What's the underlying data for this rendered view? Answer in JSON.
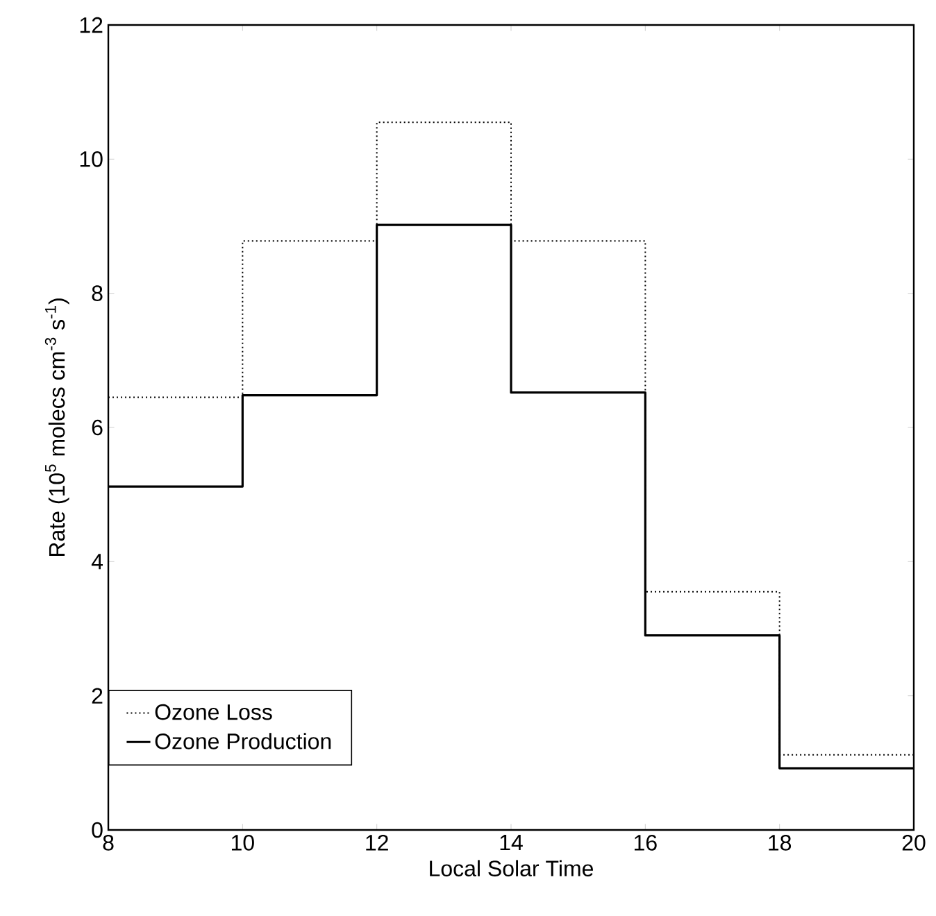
{
  "chart_data": {
    "type": "step",
    "xlabel": "Local Solar Time",
    "ylabel": "Rate (10$^{5}$ molecs cm$^{-3}$ s$^{-1}$)",
    "x": [
      8,
      10,
      12,
      14,
      16,
      18,
      20
    ],
    "series": [
      {
        "name": "Ozone Loss",
        "color": "#000000",
        "line_style": "dotted",
        "values": [
          6.45,
          8.78,
          10.55,
          8.78,
          3.55,
          1.12,
          1.12
        ]
      },
      {
        "name": "Ozone Production",
        "color": "#000000",
        "line_style": "solid",
        "values": [
          5.12,
          6.48,
          9.02,
          6.52,
          2.9,
          0.92,
          0.92
        ]
      }
    ],
    "xlim": [
      8,
      20
    ],
    "ylim": [
      0,
      12
    ],
    "xticks": [
      8,
      10,
      12,
      14,
      16,
      18,
      20
    ],
    "yticks": [
      0,
      2,
      4,
      6,
      8,
      10,
      12
    ],
    "legend": "bottom left",
    "grid": false,
    "marker": "none"
  }
}
